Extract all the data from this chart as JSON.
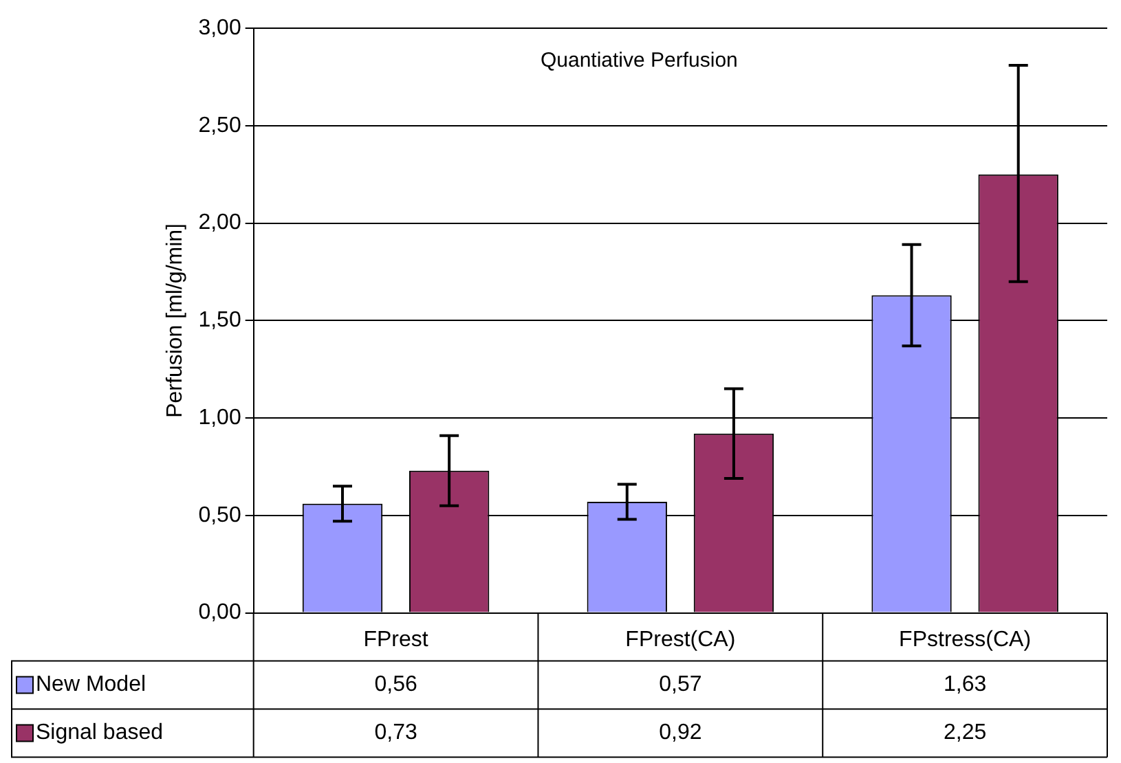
{
  "chart_data": {
    "type": "bar",
    "title": "Quantiative Perfusion",
    "ylabel": "Perfusion [ml/g/min]",
    "categories": [
      "FPrest",
      "FPrest(CA)",
      "FPstress(CA)"
    ],
    "series": [
      {
        "name": "New Model",
        "color": "#9999ff",
        "values": [
          0.56,
          0.57,
          1.63
        ],
        "errors": [
          [
            0.47,
            0.65
          ],
          [
            0.48,
            0.66
          ],
          [
            1.37,
            1.89
          ]
        ],
        "value_labels": [
          "0,56",
          "0,57",
          "1,63"
        ]
      },
      {
        "name": "Signal based",
        "color": "#993366",
        "values": [
          0.73,
          0.92,
          2.25
        ],
        "errors": [
          [
            0.55,
            0.91
          ],
          [
            0.69,
            1.15
          ],
          [
            1.7,
            2.81
          ]
        ],
        "value_labels": [
          "0,73",
          "0,92",
          "2,25"
        ]
      }
    ],
    "ylim": [
      0,
      3
    ],
    "yticks": [
      {
        "value": 0,
        "label": "0,00"
      },
      {
        "value": 0.5,
        "label": "0,50"
      },
      {
        "value": 1,
        "label": "1,00"
      },
      {
        "value": 1.5,
        "label": "1,50"
      },
      {
        "value": 2,
        "label": "2,00"
      },
      {
        "value": 2.5,
        "label": "2,50"
      },
      {
        "value": 3,
        "label": "3,00"
      }
    ],
    "grid": "y",
    "legend": "bottom left"
  }
}
